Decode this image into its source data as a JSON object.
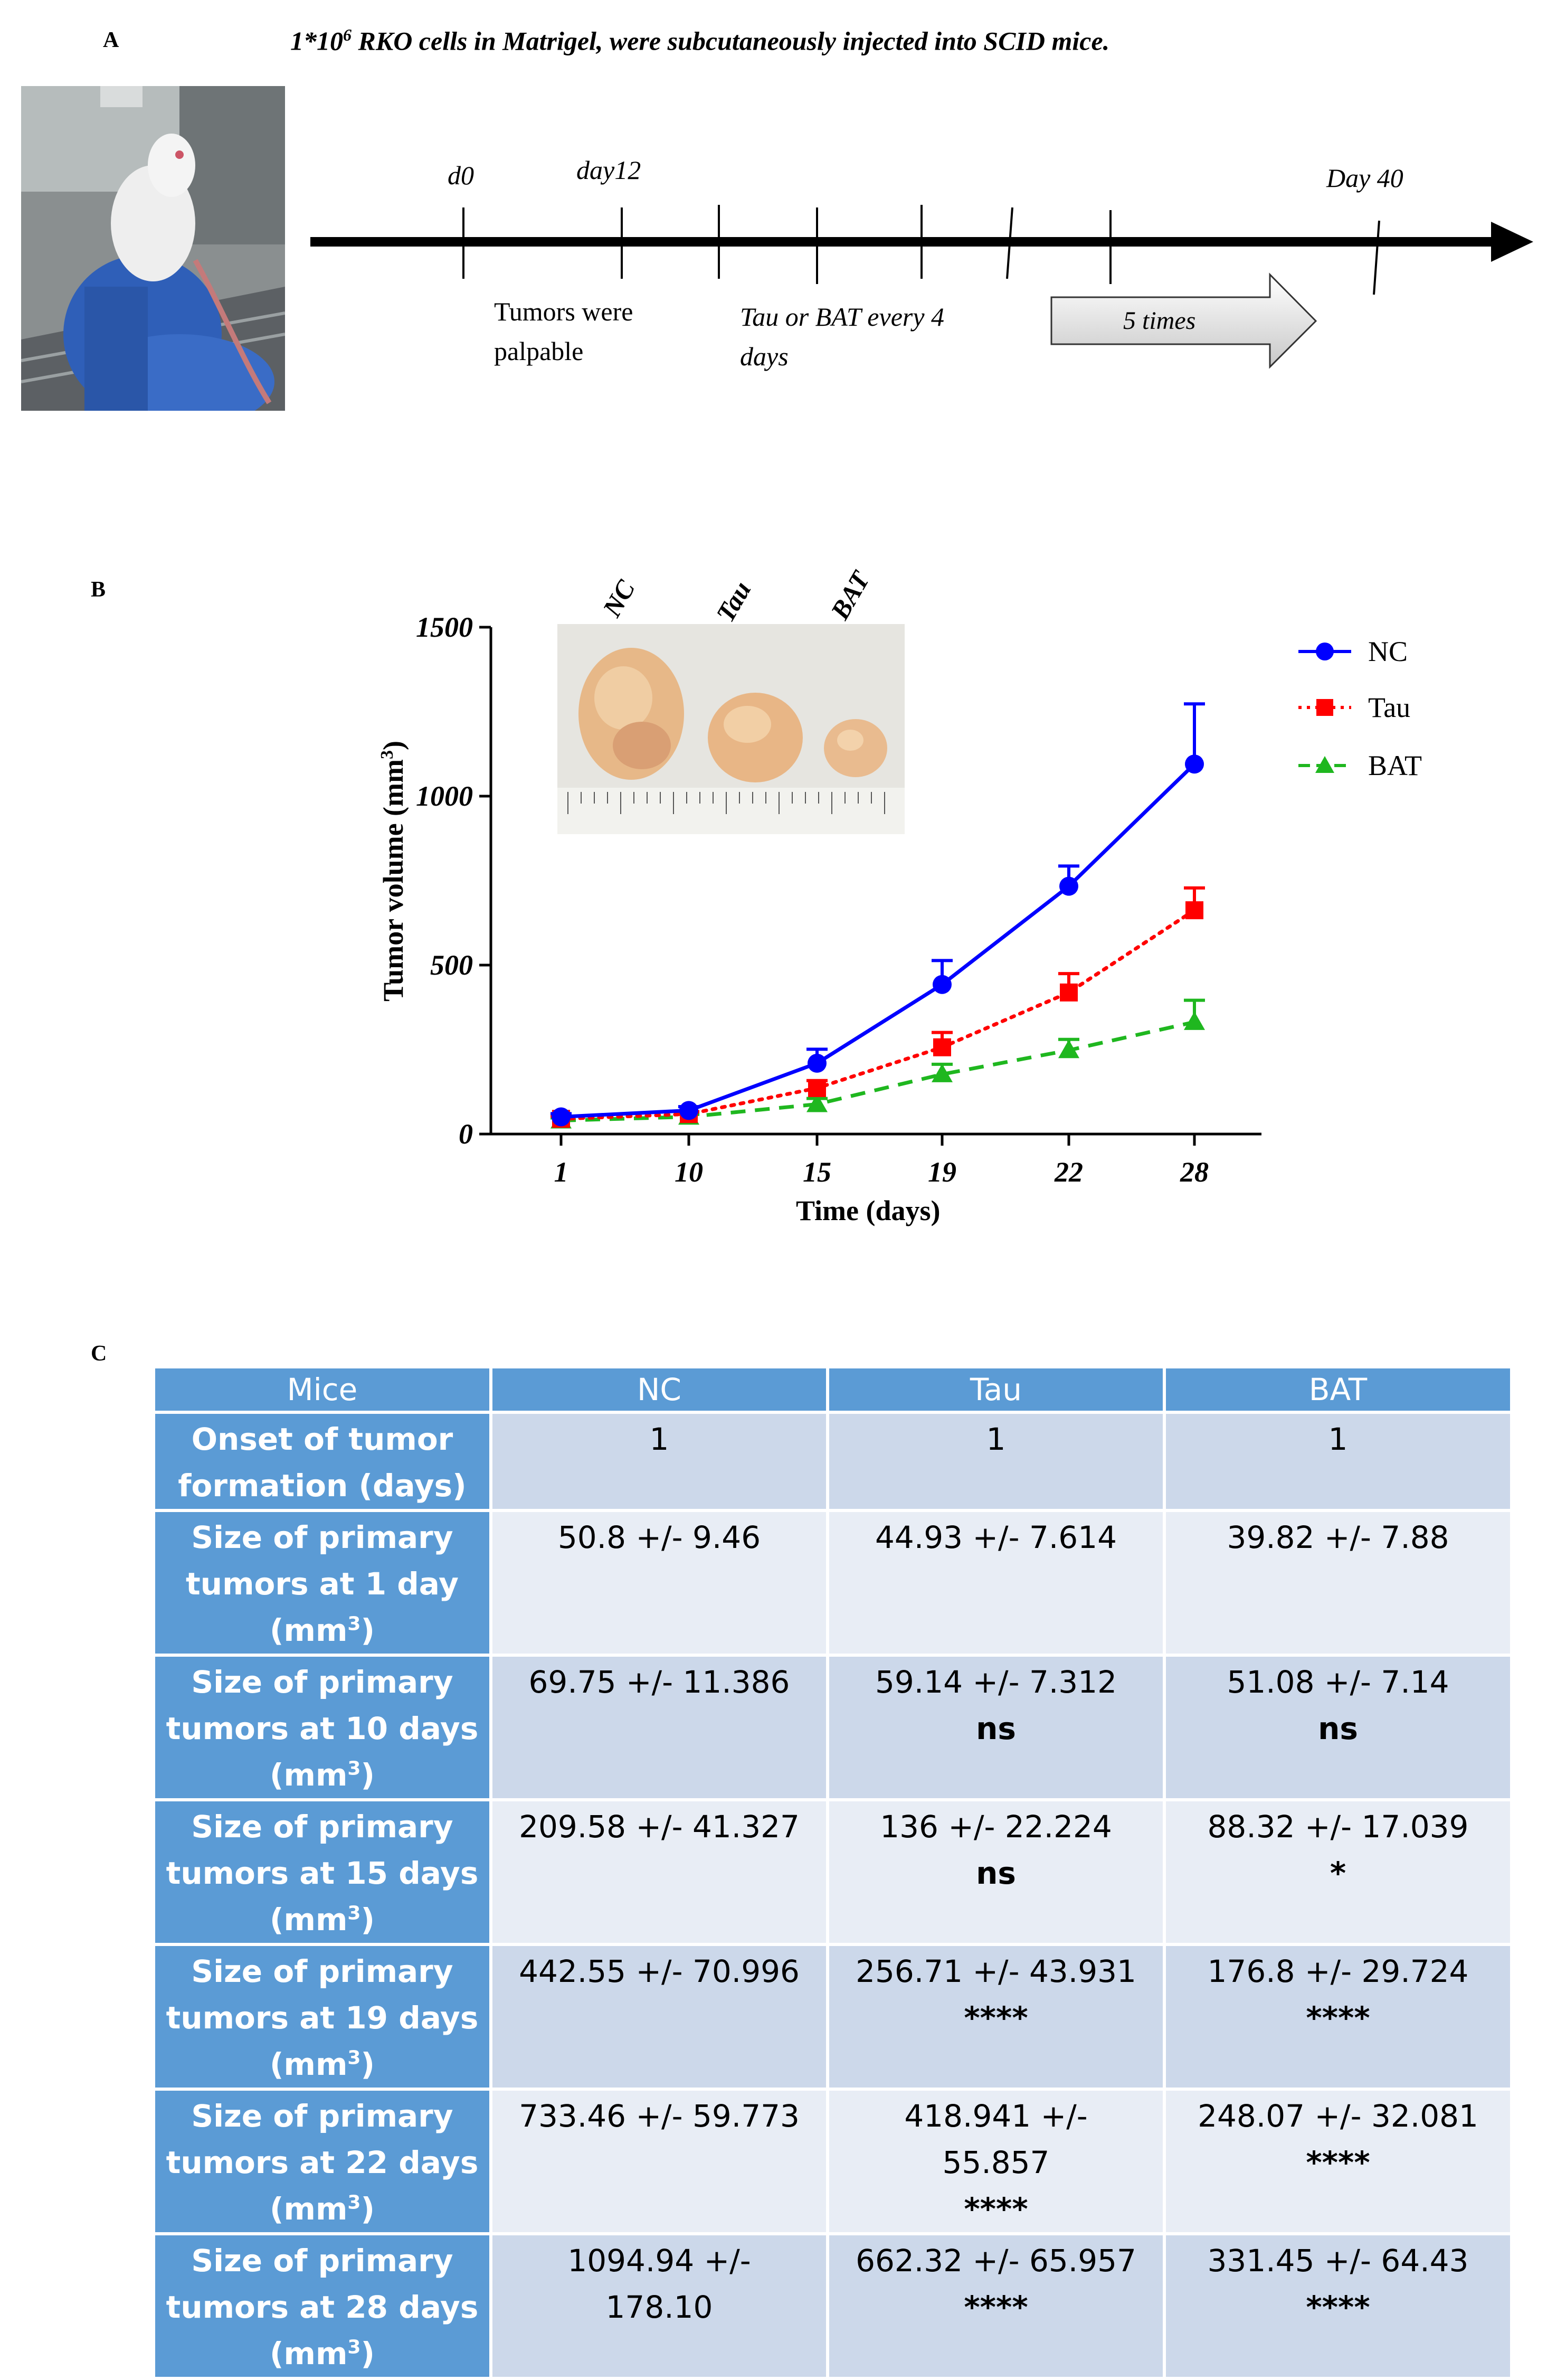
{
  "panel_a": {
    "label": "A",
    "title": "1*10",
    "title_sup": "6",
    "title_rest": " RKO cells in Matrigel, were subcutaneously injected into SCID mice.",
    "timeline": {
      "d0": "d0",
      "day12": "day12",
      "day40": "Day 40",
      "tumors_palpable_line1": "Tumors were",
      "tumors_palpable_line2": "palpable",
      "treatment_line1": "Tau or BAT every 4",
      "treatment_line2": "days",
      "repeat": "5 times"
    }
  },
  "panel_b": {
    "label": "B",
    "photo_labels": [
      "NC",
      "Tau",
      "BAT"
    ]
  },
  "chart_data": {
    "type": "line",
    "title": "",
    "xlabel": "Time (days)",
    "ylabel": "Tumor volume (mm",
    "ylabel_sup": "3",
    "ylabel_close": ")",
    "categories": [
      "1",
      "10",
      "15",
      "19",
      "22",
      "28"
    ],
    "ylim": [
      0,
      1500
    ],
    "yticks": [
      "0",
      "500",
      "1000",
      "1500"
    ],
    "series": [
      {
        "name": "NC",
        "color": "#0000ff",
        "marker": "circle",
        "line": "solid",
        "values": [
          50.8,
          69.75,
          209.58,
          442.55,
          733.46,
          1094.94
        ],
        "errors": [
          9.46,
          11.386,
          41.327,
          70.996,
          59.773,
          178.1
        ]
      },
      {
        "name": "Tau",
        "color": "#ff0000",
        "marker": "square",
        "line": "dotted",
        "values": [
          44.93,
          59.14,
          136,
          256.71,
          418.941,
          662.32
        ],
        "errors": [
          7.614,
          7.312,
          22.224,
          43.931,
          55.857,
          65.957
        ]
      },
      {
        "name": "BAT",
        "color": "#1fb71f",
        "marker": "triangle",
        "line": "dashed",
        "values": [
          39.82,
          51.08,
          88.32,
          176.8,
          248.07,
          331.45
        ],
        "errors": [
          7.88,
          7.14,
          17.039,
          29.724,
          32.081,
          64.43
        ]
      }
    ],
    "legend": "top-right"
  },
  "panel_c": {
    "label": "C",
    "headers": [
      "Mice",
      "NC",
      "Tau",
      "BAT"
    ],
    "rows": [
      {
        "label": [
          "Onset of tumor",
          "formation (days)"
        ],
        "unit": false,
        "nc": [
          "1"
        ],
        "tau": [
          "1"
        ],
        "bat": [
          "1"
        ],
        "tau_sig": "",
        "bat_sig": ""
      },
      {
        "label": [
          "Size of primary",
          "tumors at 1 day"
        ],
        "unit": true,
        "nc": [
          "50.8 +/- 9.46"
        ],
        "tau": [
          "44.93 +/- 7.614"
        ],
        "bat": [
          "39.82 +/- 7.88"
        ],
        "tau_sig": "",
        "bat_sig": ""
      },
      {
        "label": [
          "Size of primary",
          "tumors at 10 days"
        ],
        "unit": true,
        "nc": [
          "69.75 +/- 11.386"
        ],
        "tau": [
          "59.14 +/- 7.312"
        ],
        "bat": [
          "51.08 +/- 7.14"
        ],
        "tau_sig": "ns",
        "bat_sig": "ns"
      },
      {
        "label": [
          "Size of primary",
          "tumors at 15 days"
        ],
        "unit": true,
        "nc": [
          "209.58 +/- 41.327"
        ],
        "tau": [
          "136 +/- 22.224"
        ],
        "bat": [
          "88.32 +/- 17.039"
        ],
        "tau_sig": "ns",
        "bat_sig": "*"
      },
      {
        "label": [
          "Size of primary",
          "tumors at 19 days"
        ],
        "unit": true,
        "nc": [
          "442.55 +/- 70.996"
        ],
        "tau": [
          "256.71 +/- 43.931"
        ],
        "bat": [
          "176.8 +/- 29.724"
        ],
        "tau_sig": "****",
        "bat_sig": "****"
      },
      {
        "label": [
          "Size of primary",
          "tumors at 22 days"
        ],
        "unit": true,
        "nc": [
          "733.46 +/- 59.773"
        ],
        "tau": [
          "418.941 +/-",
          "55.857"
        ],
        "bat": [
          "248.07 +/- 32.081"
        ],
        "tau_sig": "****",
        "bat_sig": "****"
      },
      {
        "label": [
          "Size of primary",
          "tumors at 28 days"
        ],
        "unit": true,
        "nc": [
          "1094.94 +/-",
          "178.10"
        ],
        "tau": [
          "662.32 +/- 65.957"
        ],
        "bat": [
          "331.45 +/- 64.43"
        ],
        "tau_sig": "****",
        "bat_sig": "****"
      }
    ],
    "unit_text": "(mm",
    "unit_sup": "3",
    "unit_close": ")"
  }
}
